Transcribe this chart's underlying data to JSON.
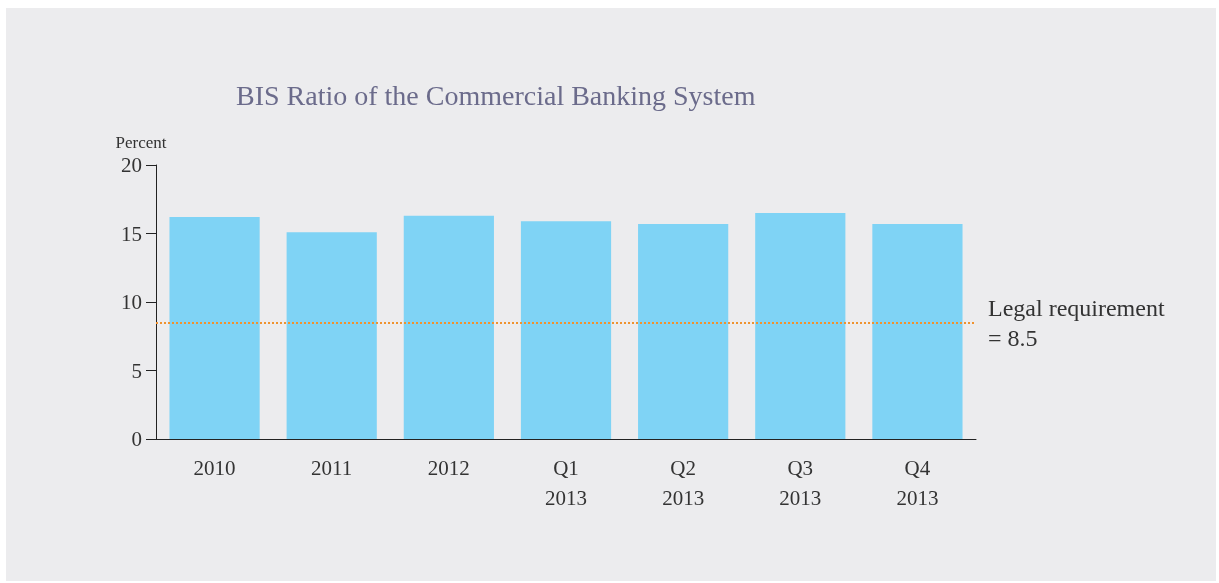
{
  "chart_data": {
    "type": "bar",
    "title": "BIS Ratio of the Commercial Banking System",
    "ylabel": "Percent",
    "categories": [
      "2010",
      "2011",
      "2012",
      "Q1 2013",
      "Q2 2013",
      "Q3 2013",
      "Q4 2013"
    ],
    "values": [
      16.2,
      15.1,
      16.3,
      15.9,
      15.7,
      16.5,
      15.7
    ],
    "color": "#7fd3f5",
    "ylim": [
      0,
      20
    ],
    "yticks": [
      0,
      5,
      10,
      15,
      20
    ],
    "grid": false,
    "ref_lines": [
      {
        "axis": "y",
        "value": 8.5,
        "label": "Legal requirement = 8.5",
        "color": "#f0922e",
        "line_style": "dotted"
      }
    ]
  }
}
